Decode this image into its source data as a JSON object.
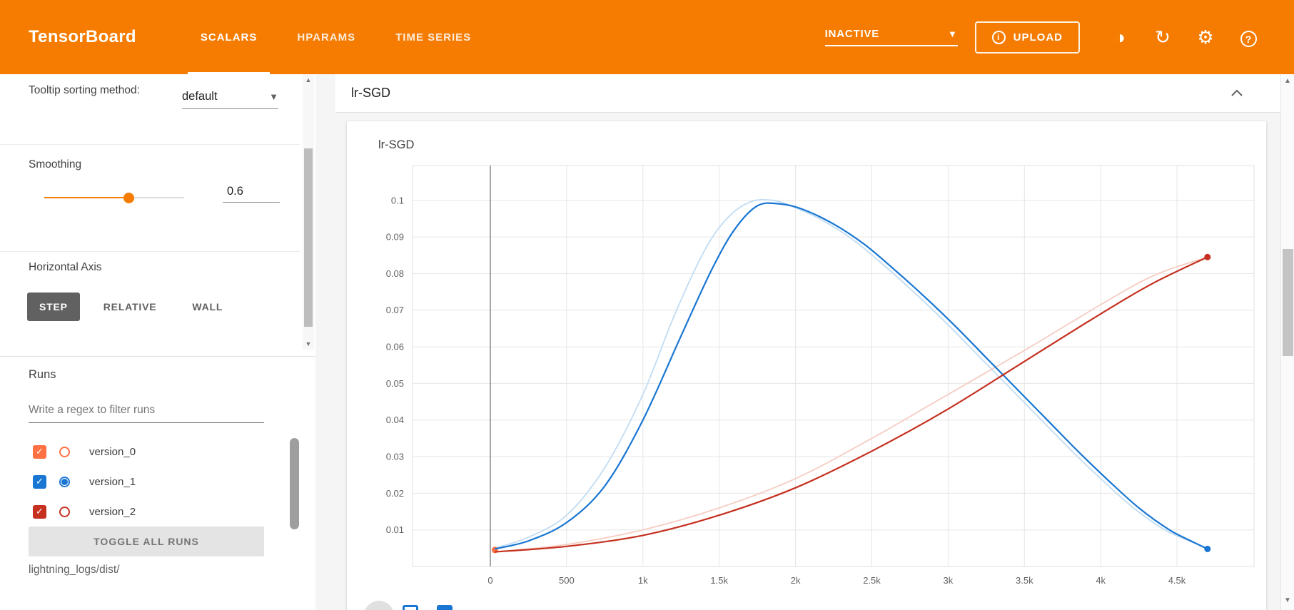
{
  "colors": {
    "accent": "#f57c00",
    "toolbar_blue": "#1976d2"
  },
  "header": {
    "brand": "TensorBoard",
    "tabs": [
      {
        "label": "SCALARS",
        "active": true
      },
      {
        "label": "HPARAMS",
        "active": false
      },
      {
        "label": "TIME SERIES",
        "active": false
      }
    ],
    "status_dropdown": {
      "value": "INACTIVE"
    },
    "upload": {
      "label": "UPLOAD",
      "icon": "info-icon"
    },
    "icons": [
      "brightness-icon",
      "refresh-icon",
      "settings-icon",
      "help-icon"
    ]
  },
  "sidebar": {
    "tooltip_sorting": {
      "label": "Tooltip sorting method:",
      "value": "default"
    },
    "smoothing": {
      "label": "Smoothing",
      "value": "0.6",
      "percent": 60
    },
    "horizontal_axis": {
      "label": "Horizontal Axis",
      "options": [
        "STEP",
        "RELATIVE",
        "WALL"
      ],
      "selected": "STEP"
    },
    "runs": {
      "label": "Runs",
      "filter_placeholder": "Write a regex to filter runs",
      "items": [
        {
          "name": "version_0",
          "color": "#ff7043",
          "checked": true,
          "radio_selected": false
        },
        {
          "name": "version_1",
          "color": "#1976d2",
          "checked": true,
          "radio_selected": true
        },
        {
          "name": "version_2",
          "color": "#c5301f",
          "checked": true,
          "radio_selected": false
        }
      ],
      "toggle_all_label": "TOGGLE ALL RUNS",
      "log_dir": "lightning_logs/dist/"
    }
  },
  "main": {
    "section_title": "lr-SGD"
  },
  "chart_data": {
    "type": "line",
    "title": "lr-SGD",
    "xlabel": "",
    "ylabel": "",
    "grid": true,
    "legend": "none",
    "xlim": [
      -510,
      5005
    ],
    "ylim": [
      0,
      0.1095
    ],
    "x_ticks": [
      {
        "value": 0,
        "label": "0"
      },
      {
        "value": 500,
        "label": "500"
      },
      {
        "value": 1000,
        "label": "1k"
      },
      {
        "value": 1500,
        "label": "1.5k"
      },
      {
        "value": 2000,
        "label": "2k"
      },
      {
        "value": 2500,
        "label": "2.5k"
      },
      {
        "value": 3000,
        "label": "3k"
      },
      {
        "value": 3500,
        "label": "3.5k"
      },
      {
        "value": 4000,
        "label": "4k"
      },
      {
        "value": 4500,
        "label": "4.5k"
      }
    ],
    "y_ticks": [
      {
        "value": 0.01,
        "label": "0.01"
      },
      {
        "value": 0.02,
        "label": "0.02"
      },
      {
        "value": 0.03,
        "label": "0.03"
      },
      {
        "value": 0.04,
        "label": "0.04"
      },
      {
        "value": 0.05,
        "label": "0.05"
      },
      {
        "value": 0.06,
        "label": "0.06"
      },
      {
        "value": 0.07,
        "label": "0.07"
      },
      {
        "value": 0.08,
        "label": "0.08"
      },
      {
        "value": 0.09,
        "label": "0.09"
      },
      {
        "value": 0.1,
        "label": "0.1"
      }
    ],
    "series": [
      {
        "name": "version_0",
        "color": "#ff7043",
        "raw_color": "#ffd0bf",
        "raw": [],
        "smoothed": [
          [
            30,
            0.0045
          ]
        ]
      },
      {
        "name": "version_1",
        "color": "#1976d2",
        "raw_color": "#c2dcf2",
        "raw": [
          [
            30,
            0.005
          ],
          [
            250,
            0.008
          ],
          [
            500,
            0.014
          ],
          [
            750,
            0.027
          ],
          [
            1000,
            0.047
          ],
          [
            1200,
            0.068
          ],
          [
            1400,
            0.086
          ],
          [
            1550,
            0.095
          ],
          [
            1700,
            0.0995
          ],
          [
            1850,
            0.1
          ],
          [
            2000,
            0.098
          ],
          [
            2200,
            0.094
          ],
          [
            2400,
            0.0885
          ],
          [
            2600,
            0.0815
          ],
          [
            2800,
            0.074
          ],
          [
            3000,
            0.066
          ],
          [
            3200,
            0.0575
          ],
          [
            3400,
            0.049
          ],
          [
            3600,
            0.0405
          ],
          [
            3800,
            0.032
          ],
          [
            4000,
            0.024
          ],
          [
            4200,
            0.0165
          ],
          [
            4400,
            0.0105
          ],
          [
            4550,
            0.0075
          ],
          [
            4700,
            0.005
          ]
        ],
        "smoothed": [
          [
            30,
            0.0048
          ],
          [
            250,
            0.007
          ],
          [
            500,
            0.012
          ],
          [
            750,
            0.022
          ],
          [
            1000,
            0.04
          ],
          [
            1250,
            0.063
          ],
          [
            1450,
            0.081
          ],
          [
            1600,
            0.092
          ],
          [
            1750,
            0.0985
          ],
          [
            1900,
            0.099
          ],
          [
            2050,
            0.0975
          ],
          [
            2250,
            0.0935
          ],
          [
            2450,
            0.088
          ],
          [
            2650,
            0.081
          ],
          [
            2850,
            0.0735
          ],
          [
            3050,
            0.0655
          ],
          [
            3250,
            0.057
          ],
          [
            3450,
            0.0485
          ],
          [
            3650,
            0.04
          ],
          [
            3850,
            0.0315
          ],
          [
            4050,
            0.0235
          ],
          [
            4250,
            0.016
          ],
          [
            4450,
            0.01
          ],
          [
            4600,
            0.0068
          ],
          [
            4700,
            0.0048
          ]
        ]
      },
      {
        "name": "version_2",
        "color": "#c5301f",
        "raw_color": "#f6cdc3",
        "raw": [
          [
            30,
            0.004
          ],
          [
            500,
            0.006
          ],
          [
            1000,
            0.01
          ],
          [
            1500,
            0.016
          ],
          [
            2000,
            0.024
          ],
          [
            2500,
            0.035
          ],
          [
            3000,
            0.047
          ],
          [
            3500,
            0.059
          ],
          [
            4000,
            0.0715
          ],
          [
            4350,
            0.0795
          ],
          [
            4700,
            0.0845
          ]
        ],
        "smoothed": [
          [
            30,
            0.004
          ],
          [
            500,
            0.0055
          ],
          [
            1000,
            0.0085
          ],
          [
            1500,
            0.014
          ],
          [
            2000,
            0.0215
          ],
          [
            2500,
            0.0315
          ],
          [
            3000,
            0.043
          ],
          [
            3500,
            0.056
          ],
          [
            4000,
            0.069
          ],
          [
            4350,
            0.0775
          ],
          [
            4700,
            0.0845
          ]
        ]
      }
    ]
  }
}
